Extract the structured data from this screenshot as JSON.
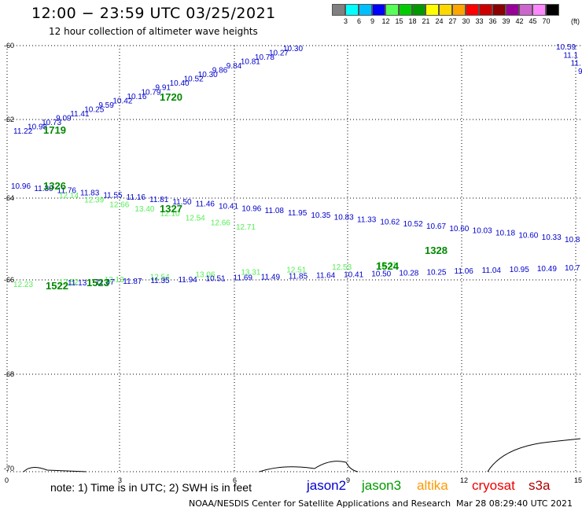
{
  "header": {
    "title": "12:00 − 23:59 UTC 03/25/2021",
    "subtitle": "12 hour collection of altimeter wave heights"
  },
  "color_scale": {
    "colors": [
      "#808080",
      "#00ffff",
      "#00bfff",
      "#0000ff",
      "#55ff55",
      "#00cc00",
      "#009900",
      "#ffff00",
      "#ffd700",
      "#ffa500",
      "#ff0000",
      "#cc0000",
      "#8b0000",
      "#990099",
      "#cc66cc",
      "#ff88ff",
      "#000000"
    ],
    "labels": [
      "3",
      "6",
      "9",
      "12",
      "15",
      "18",
      "21",
      "24",
      "27",
      "30",
      "33",
      "36",
      "39",
      "42",
      "45",
      "70"
    ],
    "unit": "(ft)"
  },
  "axes": {
    "lat_labels": [
      "-60",
      "-62",
      "-64",
      "-66",
      "-68",
      "-70"
    ],
    "lon_labels": [
      "0",
      "3",
      "6",
      "9",
      "12",
      "15"
    ]
  },
  "tracks": {
    "t1720": {
      "color": "#0000cc",
      "values": [
        "11.22",
        "10.98",
        "10.73",
        "9.09",
        "11.41",
        "10.25",
        "9.59",
        "10.42",
        "10.16",
        "10.79",
        "9.91",
        "10.40",
        "10.52",
        "10.30",
        "9.86",
        "9.84",
        "10.81",
        "10.78",
        "10.27",
        "10.30"
      ]
    },
    "t1719": {
      "color": "#0000cc",
      "values": [
        "10.59",
        "11.1",
        "11.",
        "9"
      ]
    },
    "t1326": {
      "color": "#0000cc",
      "values": [
        "10.96",
        "11.30",
        "11.76",
        "11.83",
        "11.55",
        "11.16",
        "11.81",
        "11.50",
        "11.46",
        "10.41",
        "10.96",
        "11.08",
        "11.95",
        "10.35",
        "10.83",
        "11.33",
        "10.62",
        "10.52",
        "10.67",
        "10.60",
        "10.03",
        "10.18",
        "10.60",
        "10.33",
        "10.8"
      ]
    },
    "t1326g": {
      "color": "#55ee55",
      "values": [
        "12.14",
        "12.39",
        "12.66",
        "13.40",
        "12.10",
        "12.54",
        "12.66",
        "12.71"
      ]
    },
    "t1522": {
      "color": "#55ee55",
      "values": [
        "12.23",
        "12.52",
        "12.13",
        "12.54",
        "13.06",
        "13.31",
        "12.51",
        "12.53",
        "13.11"
      ]
    },
    "t1522b": {
      "color": "#0000cc",
      "values": [
        "11.13",
        "11.37",
        "11.87",
        "11.35",
        "11.94",
        "10.51",
        "11.69",
        "11.49",
        "11.85",
        "11.64",
        "10.41",
        "10.50",
        "10.28",
        "10.25",
        "11.06",
        "11.04",
        "10.95",
        "10.49",
        "10.7"
      ]
    }
  },
  "pass_labels": {
    "p1720": "1720",
    "p1719": "1719",
    "p1326": "1326",
    "p1327": "1327",
    "p1328": "1328",
    "p1522": "1522",
    "p1523": "1523",
    "p1524": "1524"
  },
  "note": "note: 1) Time is in UTC; 2) SWH is in feet",
  "satellites": [
    {
      "name": "jason2",
      "color": "#0000cc"
    },
    {
      "name": "jason3",
      "color": "#009900"
    },
    {
      "name": "altika",
      "color": "#ff9900"
    },
    {
      "name": "cryosat",
      "color": "#ee0000"
    },
    {
      "name": "s3a",
      "color": "#aa0000"
    }
  ],
  "credit": "NOAA/NESDIS Center for Satellite Applications and Research",
  "timestamp": "Mar 28 08:29:40 UTC 2021"
}
